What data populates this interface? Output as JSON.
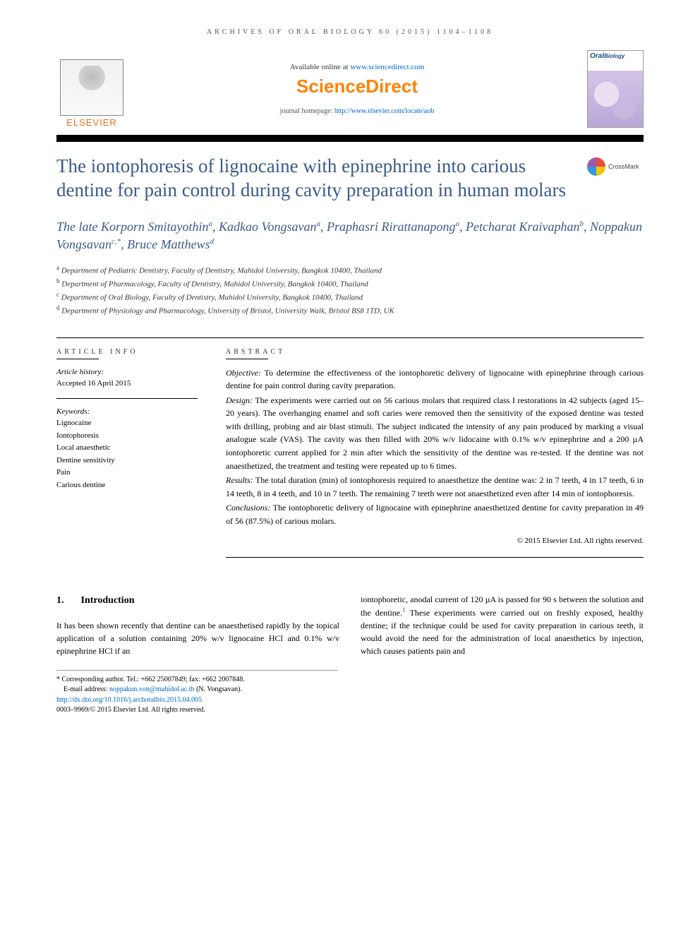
{
  "running_head": "ARCHIVES OF ORAL BIOLOGY 60 (2015) 1104–1108",
  "header": {
    "available_prefix": "Available online at ",
    "available_url": "www.sciencedirect.com",
    "sd_logo": "ScienceDirect",
    "journal_home_prefix": "journal homepage: ",
    "journal_home_url": "http://www.elsevier.com/locate/aob",
    "elsevier_word": "ELSEVIER",
    "cover_title": "Oral",
    "cover_sub": "Biology"
  },
  "crossmark": "CrossMark",
  "title": "The iontophoresis of lignocaine with epinephrine into carious dentine for pain control during cavity preparation in human molars",
  "authors_html": "The late Korporn Smitayothin<sup class='sup'>a</sup>, Kadkao Vongsavan<sup class='sup'>a</sup>, Praphasri Rirattanapong<sup class='sup'>a</sup>, Petcharat Kraivaphan<sup class='sup'>b</sup>, Noppakun Vongsavan<sup class='sup'>c,*</sup>, Bruce Matthews<sup class='sup'>d</sup>",
  "affiliations": [
    {
      "sup": "a",
      "text": "Department of Pediatric Dentistry, Faculty of Dentistry, Mahidol University, Bangkok 10400, Thailand"
    },
    {
      "sup": "b",
      "text": "Department of Pharmacology, Faculty of Dentistry, Mahidol University, Bangkok 10400, Thailand"
    },
    {
      "sup": "c",
      "text": "Department of Oral Biology, Faculty of Dentistry, Mahidol University, Bangkok 10400, Thailand"
    },
    {
      "sup": "d",
      "text": "Department of Physiology and Pharmacology, University of Bristol, University Walk, Bristol BS8 1TD, UK"
    }
  ],
  "info": {
    "head": "ARTICLE INFO",
    "history_label": "Article history:",
    "history_value": "Accepted 16 April 2015",
    "keywords_label": "Keywords:",
    "keywords": [
      "Lignocaine",
      "Iontophoresis",
      "Local anaesthetic",
      "Dentine sensitivity",
      "Pain",
      "Carious dentine"
    ]
  },
  "abstract": {
    "head": "ABSTRACT",
    "objective_label": "Objective:",
    "objective": " To determine the effectiveness of the iontophoretic delivery of lignocaine with epinephrine through carious dentine for pain control during cavity preparation.",
    "design_label": "Design:",
    "design": " The experiments were carried out on 56 carious molars that required class I restorations in 42 subjects (aged 15–20 years). The overhanging enamel and soft caries were removed then the sensitivity of the exposed dentine was tested with drilling, probing and air blast stimuli. The subject indicated the intensity of any pain produced by marking a visual analogue scale (VAS). The cavity was then filled with 20% w/v lidocaine with 0.1% w/v epinephrine and a 200 µA iontophoretic current applied for 2 min after which the sensitivity of the dentine was re-tested. If the dentine was not anaesthetized, the treatment and testing were repeated up to 6 times.",
    "results_label": "Results:",
    "results": " The total duration (min) of iontophoresis required to anaesthetize the dentine was: 2 in 7 teeth, 4 in 17 teeth, 6 in 14 teeth, 8 in 4 teeth, and 10 in 7 teeth. The remaining 7 teeth were not anaesthetized even after 14 min of iontophoresis.",
    "conclusions_label": "Conclusions:",
    "conclusions": " The iontophoretic delivery of lignocaine with epinephrine anaesthetized dentine for cavity preparation in 49 of 56 (87.5%) of carious molars.",
    "copyright": "© 2015 Elsevier Ltd. All rights reserved."
  },
  "section1": {
    "num": "1.",
    "title": "Introduction",
    "col1": "It has been shown recently that dentine can be anaesthetised rapidly by the topical application of a solution containing 20% w/v lignocaine HCl and 0.1% w/v epinephrine HCl if an",
    "col2_a": "iontophoretic, anodal current of 120 µA is passed for 90 s between the solution and the dentine.",
    "col2_ref": "1",
    "col2_b": " These experiments were carried out on freshly exposed, healthy dentine; if the technique could be used for cavity preparation in carious teeth, it would avoid the need for the administration of local anaesthetics by injection, which causes patients pain and"
  },
  "footnotes": {
    "corr": "* Corresponding author. Tel.: +662 25007849; fax: +662 2007848.",
    "email_label": "E-mail address: ",
    "email": "noppakun.von@mahidol.ac.th",
    "email_who": " (N. Vongsavan).",
    "doi": "http://dx.doi.org/10.1016/j.archoralbio.2015.04.005",
    "issn_line": "0003–9969/© 2015 Elsevier Ltd. All rights reserved."
  },
  "style": {
    "accent": "#3a5a8a",
    "orange": "#ff8200",
    "link": "#0066cc"
  }
}
